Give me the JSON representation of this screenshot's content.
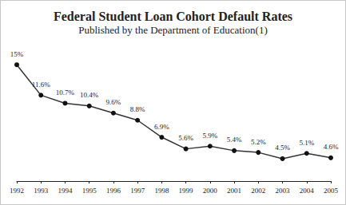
{
  "chart_data": {
    "type": "line",
    "title": "Federal Student Loan Cohort Default Rates",
    "subtitle": "Published by the Department of Education(1)",
    "categories": [
      "1992",
      "1993",
      "1994",
      "1995",
      "1996",
      "1997",
      "1998",
      "1999",
      "2000",
      "2001",
      "2002",
      "2003",
      "2004",
      "2005"
    ],
    "values": [
      15,
      11.6,
      10.7,
      10.4,
      9.6,
      8.8,
      6.9,
      5.6,
      5.9,
      5.4,
      5.2,
      4.5,
      5.1,
      4.6
    ],
    "value_labels": [
      "15%",
      "11.6%",
      "10.7%",
      "10.4%",
      "9.6%",
      "8.8%",
      "6.9%",
      "5.6%",
      "5.9%",
      "5.4%",
      "5.2%",
      "4.5%",
      "5.1%",
      "4.6%"
    ],
    "color": "#333333",
    "marker": "circle",
    "ylim": [
      2,
      16
    ],
    "grid": false,
    "data_labels": true,
    "tick_labels": "x"
  }
}
